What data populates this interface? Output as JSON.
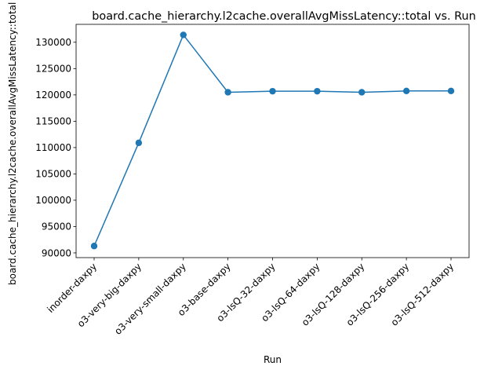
{
  "chart_data": {
    "type": "line",
    "title": "board.cache_hierarchy.l2cache.overallAvgMissLatency::total vs. Run",
    "xlabel": "Run",
    "ylabel": "board.cache_hierarchy.l2cache.overallAvgMissLatency::total",
    "categories": [
      "inorder-daxpy",
      "o3-very-big-daxpy",
      "o3-very-small-daxpy",
      "o3-base-daxpy",
      "o3-lsQ-32-daxpy",
      "o3-lsQ-64-daxpy",
      "o3-lsQ-128-daxpy",
      "o3-lsQ-256-daxpy",
      "o3-lsQ-512-daxpy"
    ],
    "values": [
      91300,
      110900,
      131400,
      120500,
      120700,
      120700,
      120500,
      120750,
      120750
    ],
    "yticks": [
      90000,
      95000,
      100000,
      105000,
      110000,
      115000,
      120000,
      125000,
      130000
    ],
    "ylim": [
      89100,
      133400
    ],
    "grid": false,
    "line_color": "#1f77b4",
    "marker": "circle"
  }
}
